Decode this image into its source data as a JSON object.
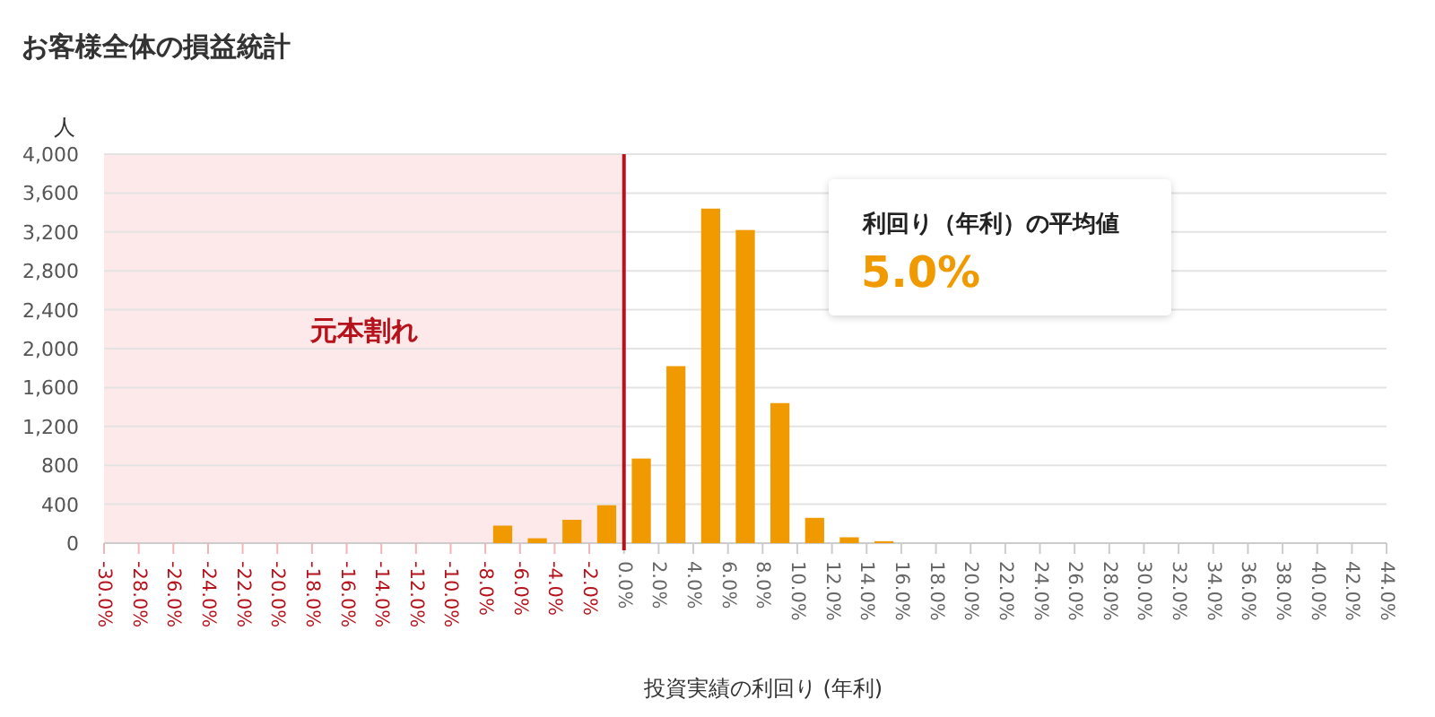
{
  "chart_data": {
    "type": "histogram",
    "title": "お客様全体の損益統計",
    "xlabel": "投資実績の利回り (年利)",
    "ylabel": "人",
    "bins": [
      -8,
      -6,
      -4,
      -2,
      0,
      2,
      4,
      6,
      8,
      10,
      12,
      14,
      16
    ],
    "values": [
      180,
      50,
      240,
      390,
      870,
      1820,
      3440,
      3220,
      1440,
      260,
      60,
      20
    ],
    "color": "#f09a00",
    "xlim": [
      -30,
      44
    ],
    "xticks": [
      {
        "value": -30,
        "label": "-30.0%"
      },
      {
        "value": -28,
        "label": "-28.0%"
      },
      {
        "value": -26,
        "label": "-26.0%"
      },
      {
        "value": -24,
        "label": "-24.0%"
      },
      {
        "value": -22,
        "label": "-22.0%"
      },
      {
        "value": -20,
        "label": "-20.0%"
      },
      {
        "value": -18,
        "label": "-18.0%"
      },
      {
        "value": -16,
        "label": "-16.0%"
      },
      {
        "value": -14,
        "label": "-14.0%"
      },
      {
        "value": -12,
        "label": "-12.0%"
      },
      {
        "value": -10,
        "label": "-10.0%"
      },
      {
        "value": -8,
        "label": "-8.0%"
      },
      {
        "value": -6,
        "label": "-6.0%"
      },
      {
        "value": -4,
        "label": "-4.0%"
      },
      {
        "value": -2,
        "label": "-2.0%"
      },
      {
        "value": 0,
        "label": "0.0%"
      },
      {
        "value": 2,
        "label": "2.0%"
      },
      {
        "value": 4,
        "label": "4.0%"
      },
      {
        "value": 6,
        "label": "6.0%"
      },
      {
        "value": 8,
        "label": "8.0%"
      },
      {
        "value": 10,
        "label": "10.0%"
      },
      {
        "value": 12,
        "label": "12.0%"
      },
      {
        "value": 14,
        "label": "14.0%"
      },
      {
        "value": 16,
        "label": "16.0%"
      },
      {
        "value": 18,
        "label": "18.0%"
      },
      {
        "value": 20,
        "label": "20.0%"
      },
      {
        "value": 22,
        "label": "22.0%"
      },
      {
        "value": 24,
        "label": "24.0%"
      },
      {
        "value": 26,
        "label": "26.0%"
      },
      {
        "value": 28,
        "label": "28.0%"
      },
      {
        "value": 30,
        "label": "30.0%"
      },
      {
        "value": 32,
        "label": "32.0%"
      },
      {
        "value": 34,
        "label": "34.0%"
      },
      {
        "value": 36,
        "label": "36.0%"
      },
      {
        "value": 38,
        "label": "38.0%"
      },
      {
        "value": 40,
        "label": "40.0%"
      },
      {
        "value": 42,
        "label": "42.0%"
      },
      {
        "value": 44,
        "label": "44.0%"
      }
    ],
    "ylim": [
      0,
      4000
    ],
    "yticks": [
      {
        "value": 0,
        "label": "0"
      },
      {
        "value": 400,
        "label": "400"
      },
      {
        "value": 800,
        "label": "800"
      },
      {
        "value": 1200,
        "label": "1,200"
      },
      {
        "value": 1600,
        "label": "1,600"
      },
      {
        "value": 2000,
        "label": "2,000"
      },
      {
        "value": 2400,
        "label": "2,400"
      },
      {
        "value": 2800,
        "label": "2,800"
      },
      {
        "value": 3200,
        "label": "3,200"
      },
      {
        "value": 3600,
        "label": "3,600"
      },
      {
        "value": 4000,
        "label": "4,000"
      }
    ],
    "grid": "y",
    "bands": [
      {
        "axis": "x",
        "from": -30,
        "to": 0,
        "label": "元本割れ",
        "color": "#fde9ea"
      }
    ],
    "ref_lines": [
      {
        "axis": "x",
        "value": 0,
        "color": "#b5121b"
      }
    ],
    "annotations": [
      "利回り（年利）の平均値",
      "5.0%"
    ]
  }
}
